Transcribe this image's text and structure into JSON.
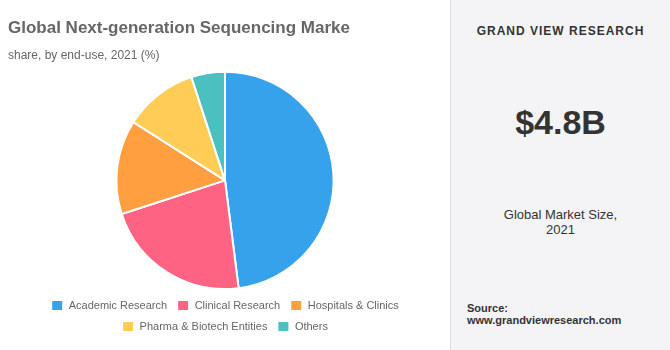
{
  "chart_data": {
    "type": "pie",
    "title": "Global Next-generation Sequencing Marke",
    "subtitle": "share, by end-use, 2021 (%)",
    "categories": [
      "Academic Research",
      "Clinical Research",
      "Hospitals & Clinics",
      "Pharma & Biotech Entities",
      "Others"
    ],
    "values": [
      48,
      22,
      14,
      11,
      5
    ],
    "legend": "bottom",
    "annotations": [
      "GRAND VIEW RESEARCH",
      "$4.8B",
      "Global Market Size,\n2021",
      "Source:\nwww.grandviewresearch.com"
    ]
  }
}
